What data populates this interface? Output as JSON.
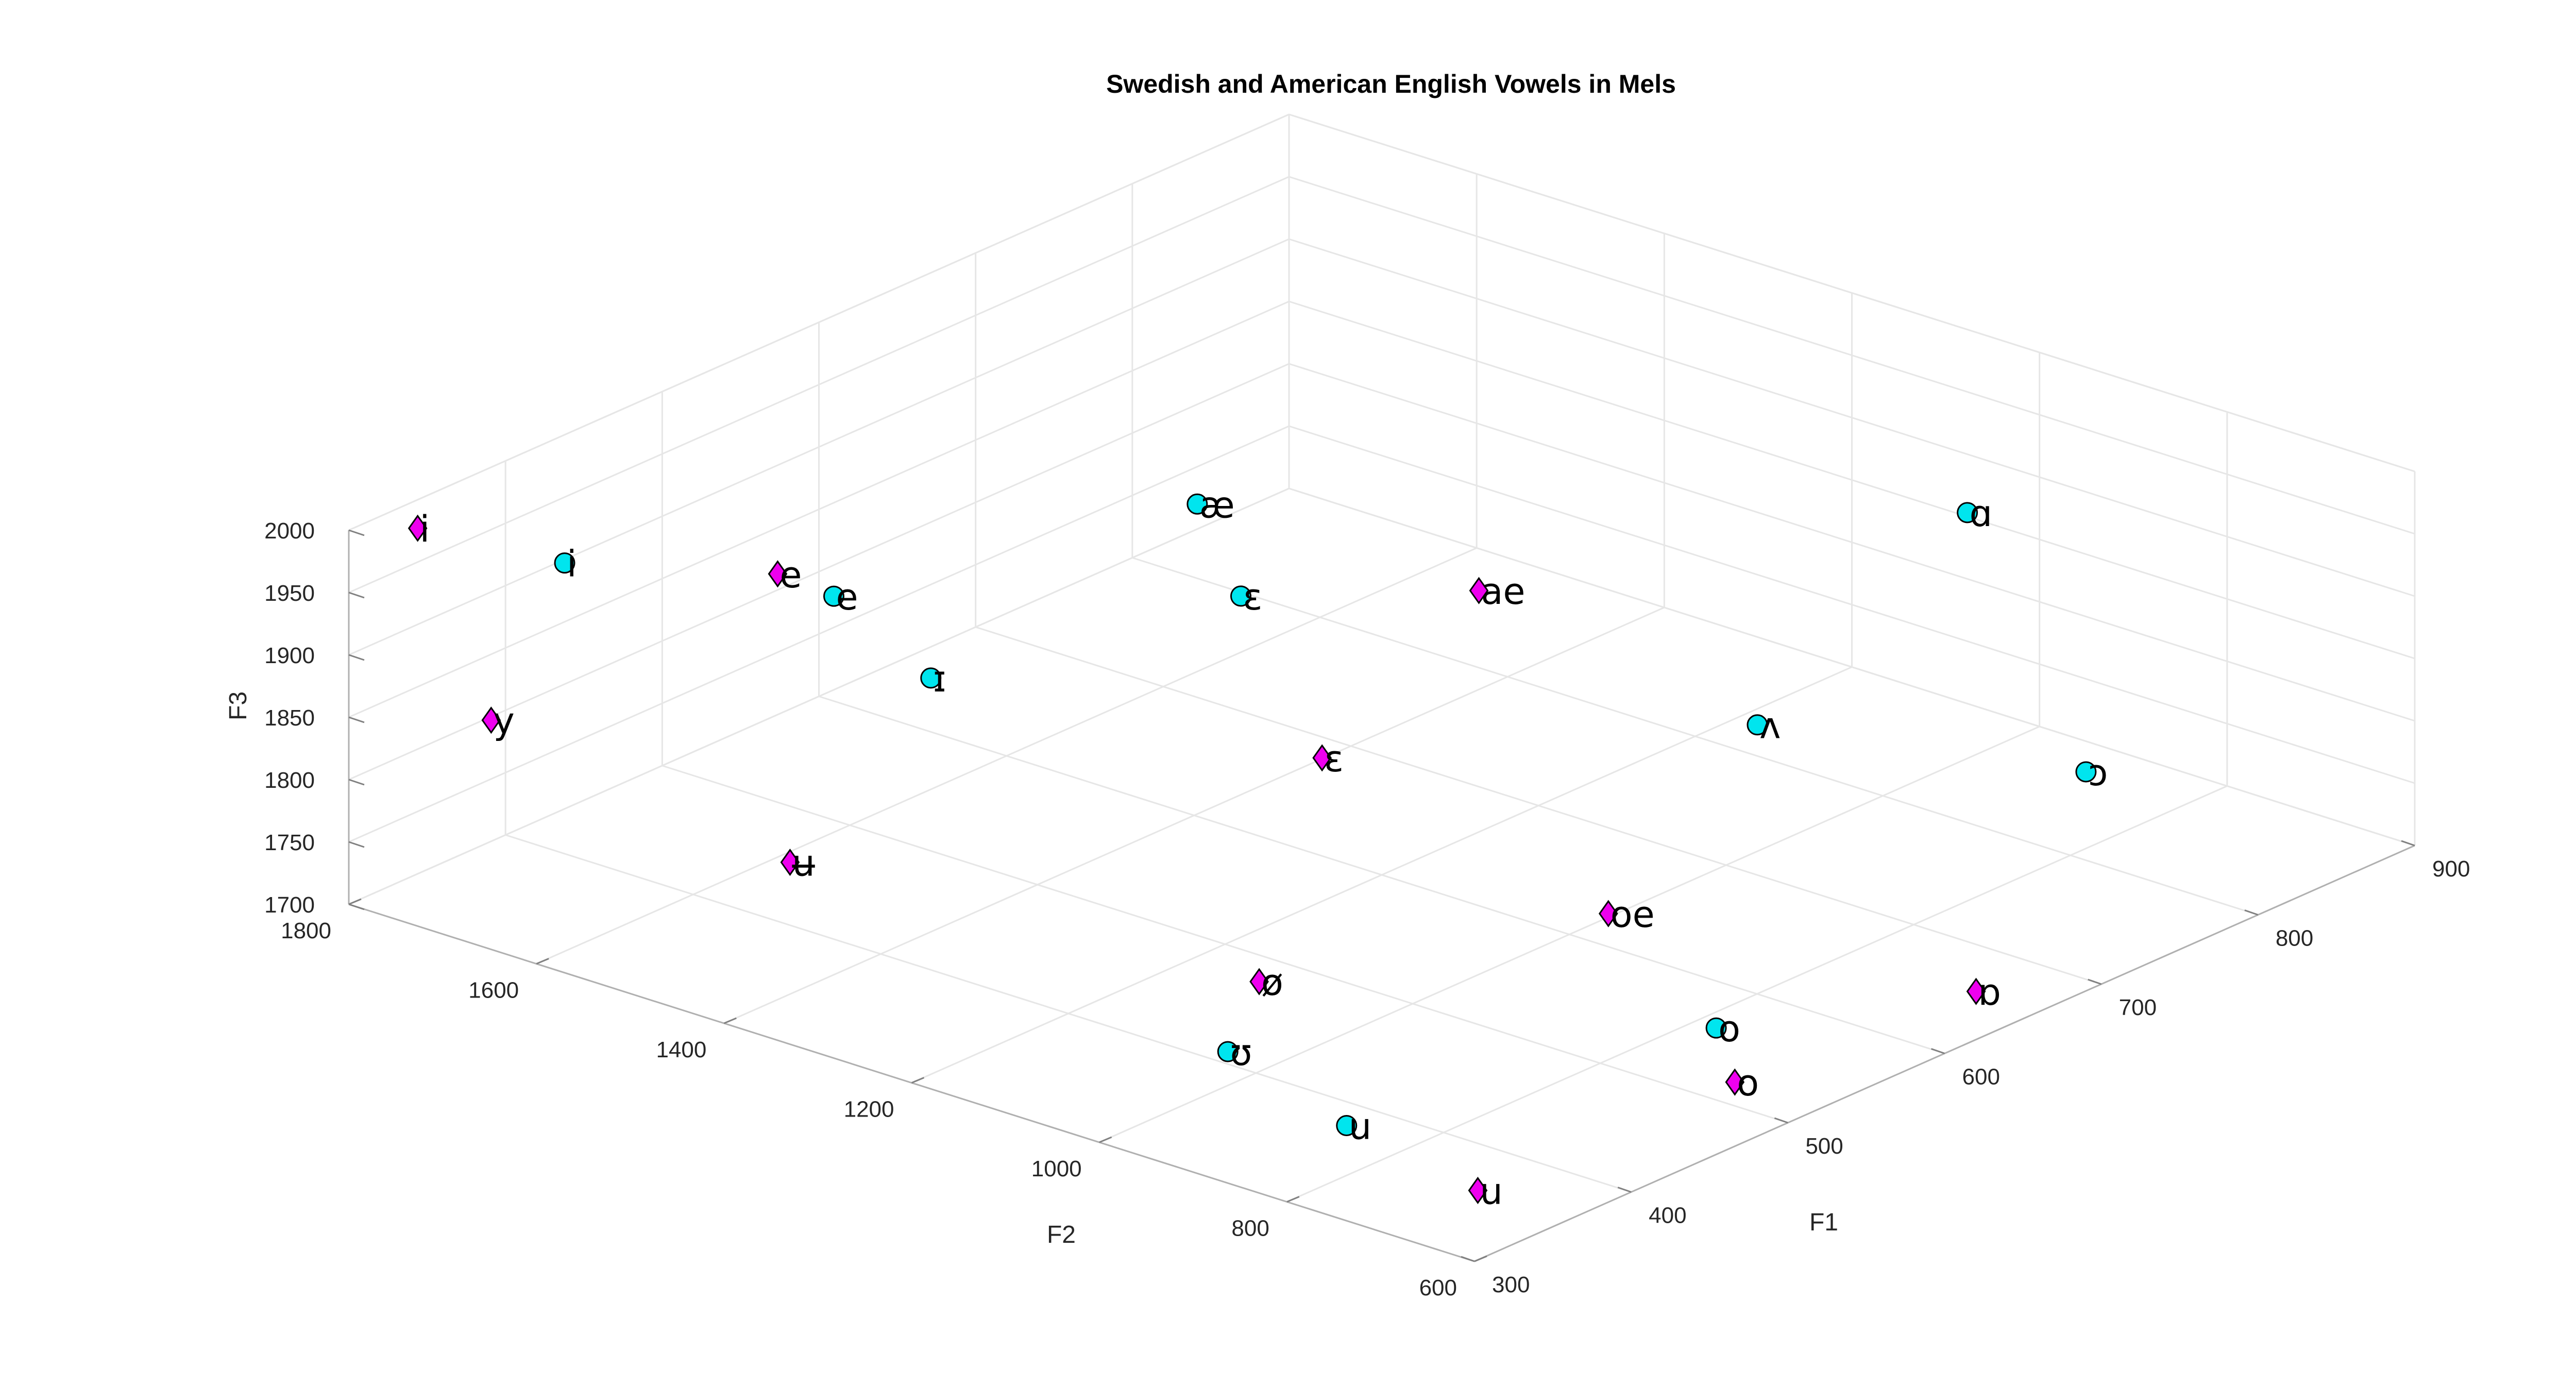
{
  "chart_data": {
    "type": "scatter",
    "title": "Swedish and American English Vowels in Mels",
    "xlabel": "F1",
    "ylabel": "F2",
    "zlabel": "F3",
    "xlim": [
      300,
      900
    ],
    "ylim": [
      600,
      1800
    ],
    "zlim": [
      1700,
      2000
    ],
    "x_ticks": [
      300,
      400,
      500,
      600,
      700,
      800,
      900
    ],
    "y_ticks": [
      600,
      800,
      1000,
      1200,
      1400,
      1600,
      1800
    ],
    "z_ticks": [
      1700,
      1750,
      1800,
      1850,
      1900,
      1950,
      2000
    ],
    "grid": true,
    "series": [
      {
        "marker": "circle",
        "color": "#00e5ee",
        "points": [
          {
            "label": "i",
            "x": 330,
            "y": 1620,
            "z": 2000
          },
          {
            "label": "ɪ",
            "x": 420,
            "y": 1380,
            "z": 1915
          },
          {
            "label": "e",
            "x": 400,
            "y": 1450,
            "z": 1975
          },
          {
            "label": "æ",
            "x": 590,
            "y": 1380,
            "z": 1960
          },
          {
            "label": "ɛ",
            "x": 540,
            "y": 1250,
            "z": 1945
          },
          {
            "label": "ɑ",
            "x": 830,
            "y": 960,
            "z": 1920
          },
          {
            "label": "ʌ",
            "x": 690,
            "y": 950,
            "z": 1830
          },
          {
            "label": "ɔ",
            "x": 780,
            "y": 750,
            "z": 1790
          },
          {
            "label": "o",
            "x": 550,
            "y": 760,
            "z": 1710
          },
          {
            "label": "ʊ",
            "x": 400,
            "y": 1030,
            "z": 1710
          },
          {
            "label": "u",
            "x": 380,
            "y": 870,
            "z": 1700
          }
        ]
      },
      {
        "marker": "diamond",
        "color": "#ee00ee",
        "points": [
          {
            "label": "i",
            "x": 320,
            "y": 1760,
            "z": 2000
          },
          {
            "label": "y",
            "x": 325,
            "y": 1690,
            "z": 1860
          },
          {
            "label": "e",
            "x": 430,
            "y": 1560,
            "z": 1950
          },
          {
            "label": "ɛ",
            "x": 520,
            "y": 1130,
            "z": 1855
          },
          {
            "label": "ae",
            "x": 650,
            "y": 1180,
            "z": 1905
          },
          {
            "label": "ø",
            "x": 420,
            "y": 1030,
            "z": 1755
          },
          {
            "label": "oe",
            "x": 565,
            "y": 900,
            "z": 1760
          },
          {
            "label": "ʉ",
            "x": 390,
            "y": 1480,
            "z": 1760
          },
          {
            "label": "ɒ",
            "x": 650,
            "y": 650,
            "z": 1710
          },
          {
            "label": "o",
            "x": 520,
            "y": 690,
            "z": 1700
          },
          {
            "label": "u",
            "x": 350,
            "y": 680,
            "z": 1710
          }
        ]
      }
    ]
  }
}
